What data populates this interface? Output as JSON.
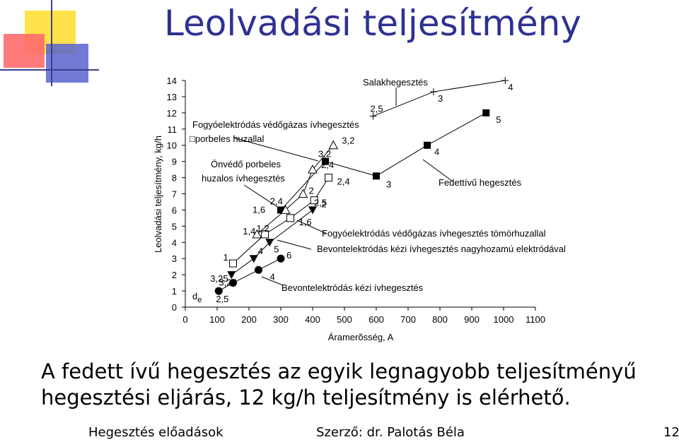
{
  "slide": {
    "title": "Leolvadási teljesítmény",
    "caption": "A fedett ívű hegesztés az egyik legnagyobb teljesítményű hegesztési eljárás, 12 kg/h teljesítmény is elérhető.",
    "footer_left": "Hegesztés  előadások",
    "footer_center": "Szerző: dr. Palotás Béla",
    "page_number": "12",
    "colors": {
      "title": "#2e3192",
      "deco_yellow": "#ffe24a",
      "deco_red": "#ff5a5a",
      "deco_blue": "#4a55c9"
    }
  },
  "chart_data": {
    "type": "line",
    "xlabel": "Áramerõsség, A",
    "ylabel": "Leolvadási teljesítmény, kg/h",
    "xlim": [
      0,
      1100
    ],
    "ylim": [
      0,
      14
    ],
    "xticks": [
      0,
      100,
      200,
      300,
      400,
      500,
      600,
      700,
      800,
      900,
      1000,
      1100
    ],
    "yticks": [
      0,
      1,
      2,
      3,
      4,
      5,
      6,
      7,
      8,
      9,
      10,
      11,
      12,
      13,
      14
    ],
    "grid": false,
    "de_label": "d",
    "de_sub": "e",
    "series": [
      {
        "key": "salak",
        "marker": "plus",
        "points": [
          {
            "x": 590,
            "y": 11.8,
            "label": "2,5"
          },
          {
            "x": 780,
            "y": 13.3,
            "label": "3"
          },
          {
            "x": 1005,
            "y": 14.0,
            "label": "4"
          }
        ]
      },
      {
        "key": "fedett",
        "marker": "square-filled",
        "points": [
          {
            "x": 300,
            "y": 6.0,
            "label": "1,6"
          },
          {
            "x": 440,
            "y": 9.0,
            "label": "3,2"
          },
          {
            "x": 600,
            "y": 8.1,
            "label": "3"
          },
          {
            "x": 760,
            "y": 10.0,
            "label": "4"
          },
          {
            "x": 945,
            "y": 12.0,
            "label": "5"
          }
        ]
      },
      {
        "key": "vedogaz",
        "marker": "triangle-open",
        "points": [
          {
            "x": 225,
            "y": 4.5,
            "label": "1,4"
          },
          {
            "x": 315,
            "y": 6.0,
            "label": "2,4"
          },
          {
            "x": 370,
            "y": 7.0,
            "label": "2"
          },
          {
            "x": 400,
            "y": 8.5,
            "label": "2,4"
          },
          {
            "x": 465,
            "y": 10.0,
            "label": "3,2"
          }
        ]
      },
      {
        "key": "tomor",
        "marker": "square-open",
        "points": [
          {
            "x": 150,
            "y": 2.7,
            "label": "1"
          },
          {
            "x": 250,
            "y": 4.5,
            "label": "1,2"
          },
          {
            "x": 330,
            "y": 5.5,
            "label": "1,6"
          },
          {
            "x": 405,
            "y": 6.6,
            "label": "2"
          },
          {
            "x": 450,
            "y": 8.0,
            "label": "2,4"
          }
        ]
      },
      {
        "key": "nagyhozamu",
        "marker": "triangle-filled",
        "points": [
          {
            "x": 145,
            "y": 2.0,
            "label": "3,25"
          },
          {
            "x": 215,
            "y": 3.0,
            "label": "4"
          },
          {
            "x": 265,
            "y": 4.0,
            "label": "5"
          },
          {
            "x": 400,
            "y": 6.0,
            "label": "2,5"
          }
        ]
      },
      {
        "key": "kezi",
        "marker": "circle-filled",
        "points": [
          {
            "x": 105,
            "y": 1.0,
            "label": "2,5"
          },
          {
            "x": 150,
            "y": 1.5,
            "label": "3,25"
          },
          {
            "x": 230,
            "y": 2.3,
            "label": "4"
          },
          {
            "x": 300,
            "y": 3.0,
            "label": "6"
          }
        ]
      }
    ],
    "annotations": [
      {
        "key": "salak",
        "text": "Salakhegesztés"
      },
      {
        "key": "fedett",
        "text": "Fedettívű hegesztés"
      },
      {
        "key": "vedogaz_huzal",
        "text": "Fogyóelektródás védőgázas ívhegesztés"
      },
      {
        "key": "porbeles",
        "text": "□porbeles huzallal"
      },
      {
        "key": "onvedo",
        "text": "Önvédő porbeles"
      },
      {
        "key": "onvedo2",
        "text": "huzalos ívhegesztés"
      },
      {
        "key": "tomor",
        "text": "Fogyóelektródás védőgázas ívhegesztés tömörhuzallal"
      },
      {
        "key": "nagyhozamu",
        "text": "Bevontelektródás kézi ívhegesztés nagyhozamú elektródával"
      },
      {
        "key": "kezi",
        "text": "Bevontelektródás kézi ívhegesztés"
      }
    ]
  }
}
